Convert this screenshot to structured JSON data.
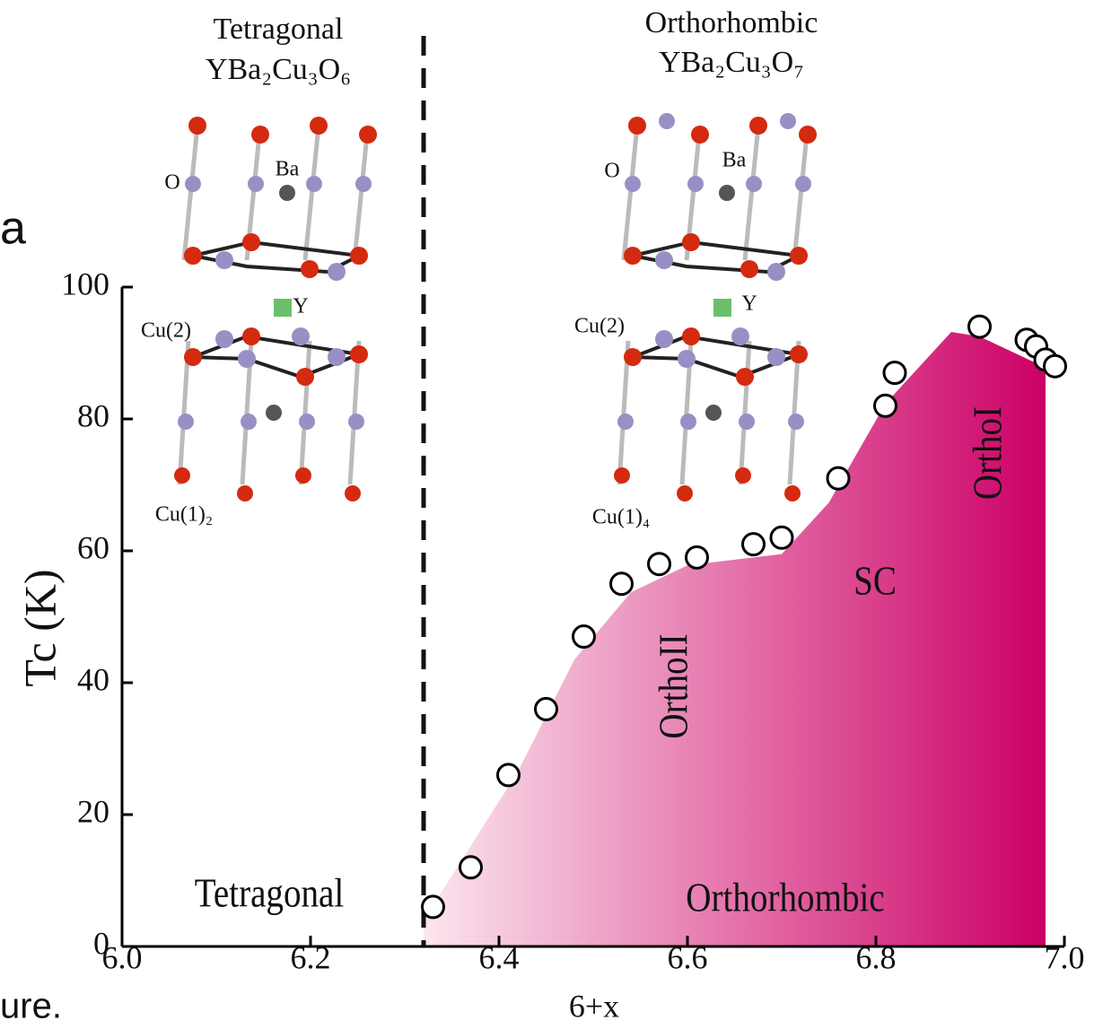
{
  "chart_data": {
    "type": "scatter",
    "x_label": "6+x",
    "y_label": "Tc (K)",
    "xlim": [
      6.0,
      7.0
    ],
    "ylim": [
      0,
      100
    ],
    "xticks": [
      {
        "value": 6.0,
        "label": "6.0"
      },
      6.2,
      6.4,
      6.6,
      6.8,
      {
        "value": 7.0,
        "label": "7.0"
      }
    ],
    "yticks": [
      0,
      20,
      40,
      60,
      80,
      100
    ],
    "series": [
      {
        "color": "#000000",
        "x": [
          6.33,
          6.37,
          6.41,
          6.45,
          6.49,
          6.53,
          6.57,
          6.61,
          6.67,
          6.7,
          6.76,
          6.81,
          6.82,
          6.91,
          6.96,
          6.97,
          6.98,
          6.99
        ],
        "values": [
          6,
          12,
          26,
          36,
          47,
          55,
          58,
          59,
          61,
          62,
          71,
          82,
          87,
          94,
          92,
          91,
          89,
          88
        ]
      }
    ],
    "area": {
      "gradient": [
        "#fce6ef",
        "#cc0066"
      ],
      "x": [
        6.32,
        6.42,
        6.48,
        6.54,
        6.6,
        6.7,
        6.75,
        6.81,
        6.88,
        6.91,
        6.98
      ],
      "values": [
        4,
        26.5,
        43.5,
        53.7,
        57.8,
        59.5,
        67.3,
        82.3,
        93.2,
        92.5,
        87.8
      ]
    },
    "boundary_x": 6.32,
    "annotations": [
      "Tetragonal",
      "Orthorhombic",
      "SC",
      "OrthoII",
      "OrthoI"
    ],
    "structures": [
      {
        "title": "Tetragonal",
        "formula": "YBa₂Cu₃O₆",
        "labels": [
          "O",
          "Ba",
          "Y",
          "Cu(2)",
          "Cu(1)₂"
        ]
      },
      {
        "title": "Orthorhombic",
        "formula": "YBa₂Cu₃O₇",
        "labels": [
          "O",
          "Ba",
          "Y",
          "Cu(2)",
          "Cu(1)₄"
        ]
      }
    ],
    "fragments": [
      "a",
      "ure."
    ]
  }
}
